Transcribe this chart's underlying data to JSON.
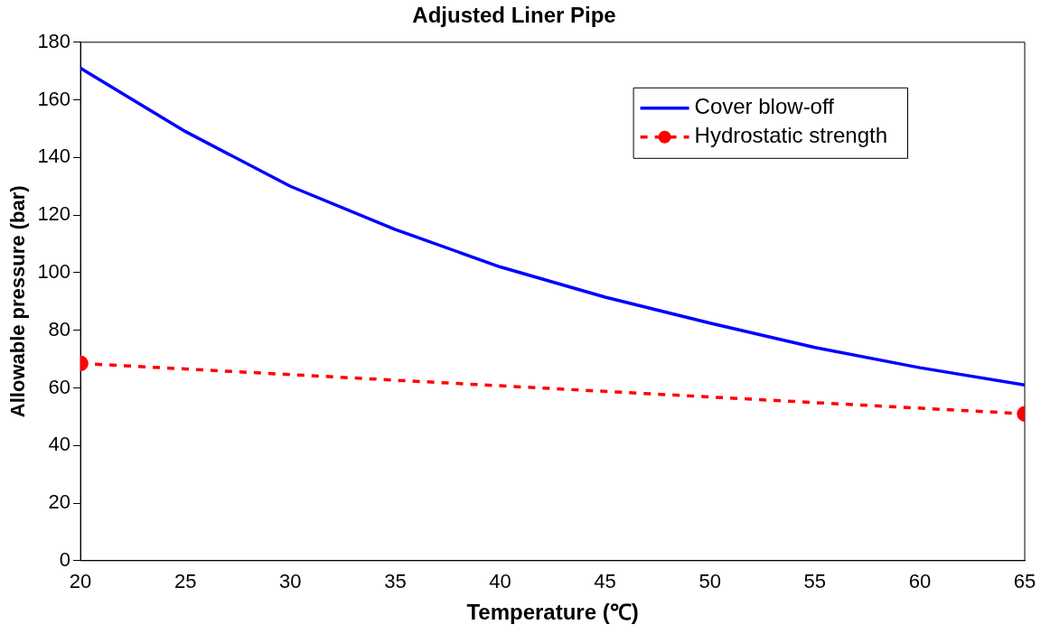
{
  "chart_data": {
    "type": "line",
    "title": "Adjusted Liner Pipe",
    "xlabel": "Temperature (℃)",
    "ylabel": "Allowable pressure (bar)",
    "x": [
      20,
      25,
      30,
      35,
      40,
      45,
      50,
      55,
      60,
      65
    ],
    "xlim": [
      20,
      65
    ],
    "xticks": [
      20,
      25,
      30,
      35,
      40,
      45,
      50,
      55,
      60,
      65
    ],
    "ylim": [
      0,
      180
    ],
    "yticks": [
      0,
      20,
      40,
      60,
      80,
      100,
      120,
      140,
      160,
      180
    ],
    "grid": false,
    "legend": "top right",
    "series": [
      {
        "name": "Cover blow-off",
        "color": "#0000ff",
        "marker": "none",
        "line_style": "solid",
        "values": [
          171,
          149,
          130,
          115,
          102,
          91.5,
          82.5,
          74,
          67,
          61
        ]
      },
      {
        "name": "Hydrostatic strength",
        "color": "#ff0000",
        "marker": "circle",
        "line_style": "dashed",
        "x": [
          20,
          65
        ],
        "values": [
          68.5,
          51
        ]
      }
    ]
  }
}
